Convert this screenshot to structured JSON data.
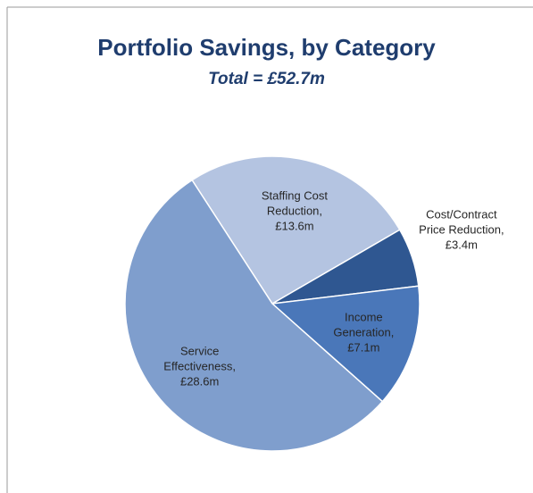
{
  "chart_data": {
    "type": "pie",
    "title": "Portfolio Savings, by Category",
    "subtitle": "Total = £52.7m",
    "categories": [
      "Staffing Cost Reduction,",
      "Cost/Contract Price Reduction,",
      "Income Generation,",
      "Service Effectiveness,"
    ],
    "values": [
      13.6,
      3.4,
      7.1,
      28.6
    ],
    "value_labels": [
      "£13.6m",
      "£3.4m",
      "£7.1m",
      "£28.6m"
    ],
    "colors": [
      "#b4c4e1",
      "#2f5791",
      "#4a77b9",
      "#7f9ecd"
    ]
  }
}
